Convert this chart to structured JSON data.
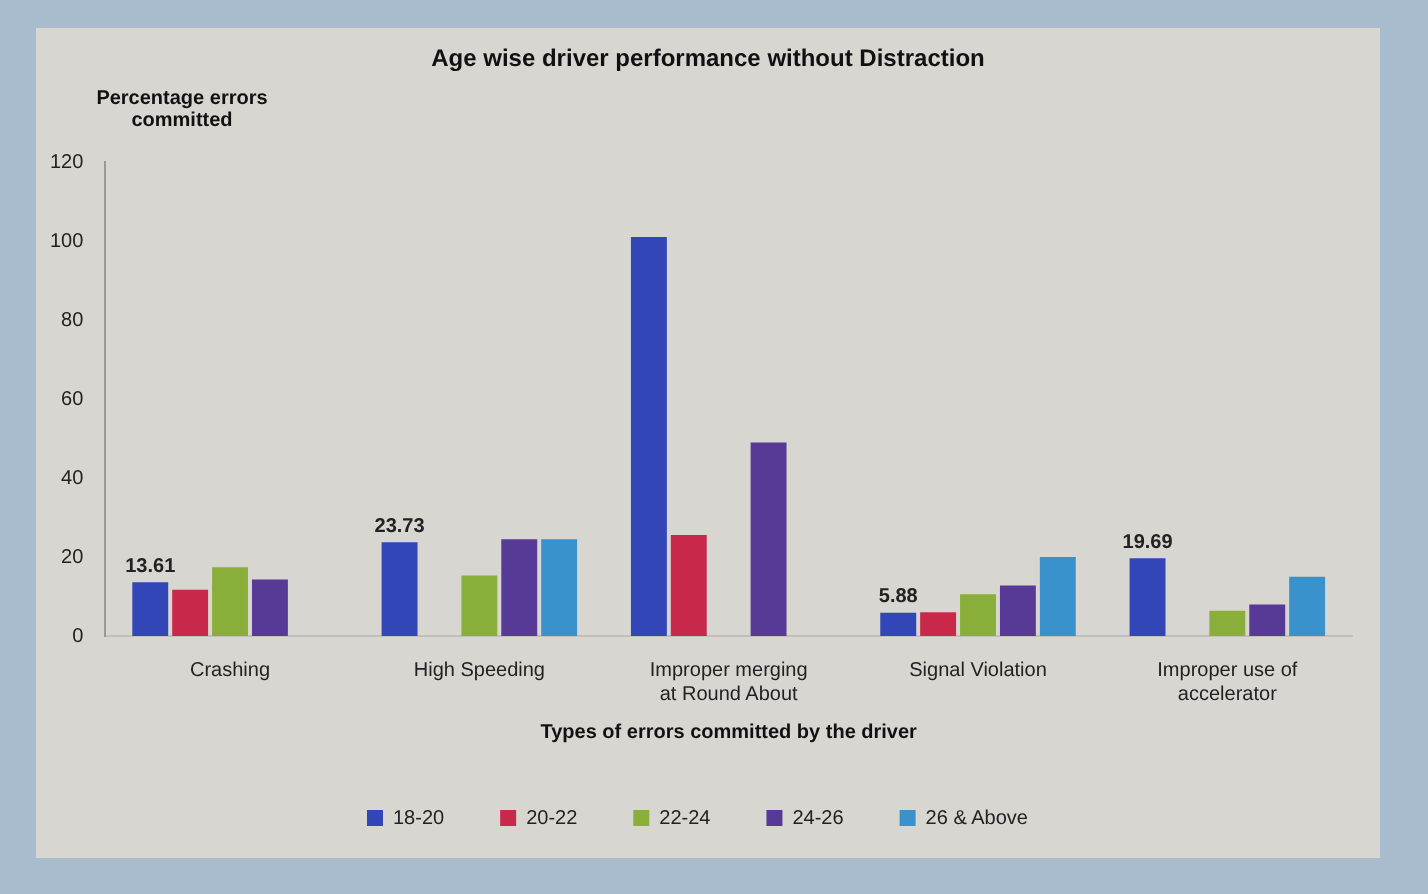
{
  "chart_data": {
    "type": "bar",
    "title": "Age wise driver performance without Distraction",
    "ylabel": "Percentage errors committed",
    "xlabel": "Types of errors committed by the driver",
    "categories": [
      "Crashing",
      "High Speeding",
      "Improper merging at Round About",
      "Signal Violation",
      "Improper use of accelerator"
    ],
    "series": [
      {
        "name": "18-20",
        "color": "#3346b8",
        "values": [
          13.61,
          23.73,
          101,
          5.88,
          19.69
        ],
        "value_labels": [
          "13.61",
          "23.73",
          null,
          "5.88",
          "19.69"
        ]
      },
      {
        "name": "20-22",
        "color": "#c8284a",
        "values": [
          11.7,
          null,
          25.6,
          6,
          null
        ]
      },
      {
        "name": "22-24",
        "color": "#8aae3a",
        "values": [
          17.4,
          15.3,
          null,
          10.6,
          6.4
        ]
      },
      {
        "name": "24-26",
        "color": "#563a96",
        "values": [
          14.3,
          24.5,
          49,
          12.8,
          8
        ]
      },
      {
        "name": "26 & Above",
        "color": "#3a92cc",
        "values": [
          null,
          24.5,
          null,
          20,
          15
        ]
      }
    ],
    "ylim": [
      0,
      120
    ],
    "yticks": [
      0,
      20,
      40,
      60,
      80,
      100,
      120
    ],
    "grid": false,
    "legend": "bottom"
  }
}
